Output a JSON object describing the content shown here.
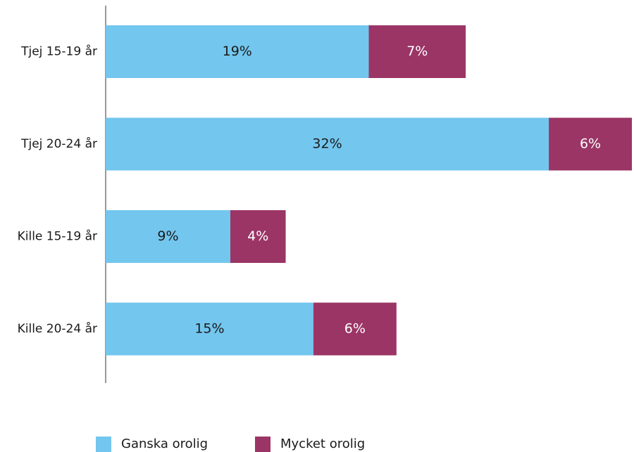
{
  "chart_data": {
    "type": "stacked_barh",
    "categories": [
      "Tjej 15-19 år",
      "Tjej 20-24 år",
      "Kille 15-19 år",
      "Kille 20-24 år"
    ],
    "series": [
      {
        "name": "Ganska orolig",
        "color": "#73c6ee",
        "values": [
          19,
          32,
          9,
          15
        ],
        "value_labels": [
          "19%",
          "32%",
          "9%",
          "15%"
        ]
      },
      {
        "name": "Mycket orolig",
        "color": "#9b3566",
        "values": [
          7,
          6,
          4,
          6
        ],
        "value_labels": [
          "7%",
          "6%",
          "4%",
          "6%"
        ]
      }
    ],
    "legend": "bottom"
  }
}
